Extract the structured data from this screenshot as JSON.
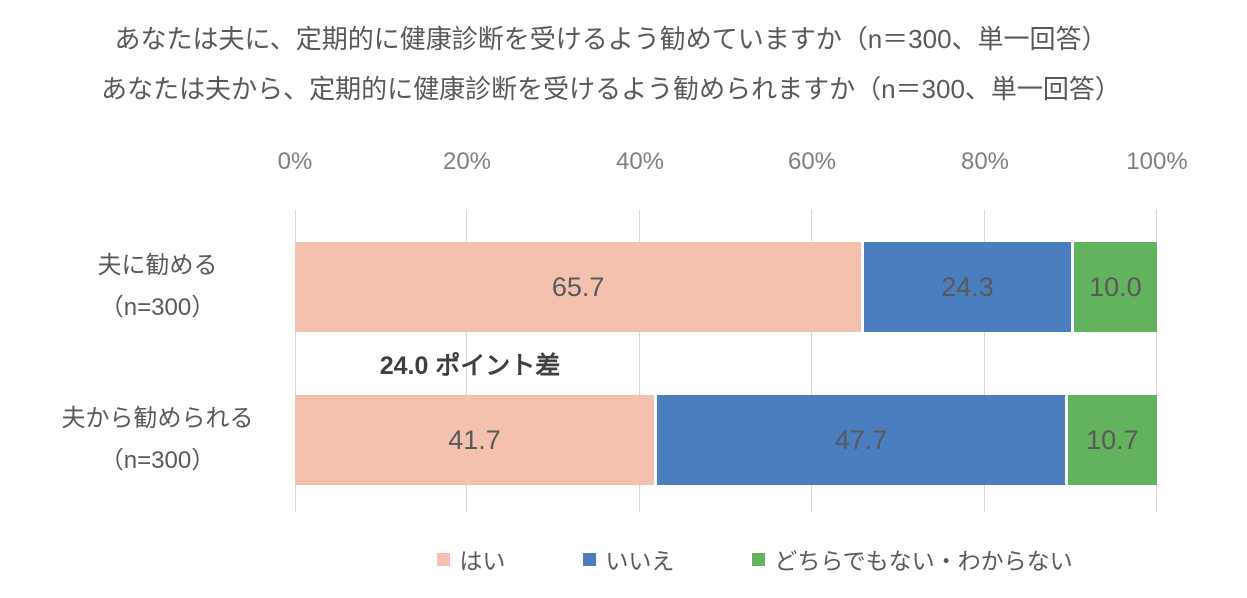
{
  "title": {
    "line1": "あなたは夫に、定期的に健康診断を受けるよう勧めていますか（n＝300、単一回答）",
    "line2": "あなたは夫から、定期的に健康診断を受けるよう勧められますか（n＝300、単一回答）"
  },
  "chart_data": {
    "type": "bar",
    "subtype": "horizontal-stacked",
    "title": "あなたは夫に、定期的に健康診断を受けるよう勧めていますか（n＝300、単一回答）／あなたは夫から、定期的に健康診断を受けるよう勧められますか（n＝300、単一回答）",
    "x_ticks": [
      "0%",
      "20%",
      "40%",
      "60%",
      "80%",
      "100%"
    ],
    "x_range": [
      0,
      100
    ],
    "grid": true,
    "legend_position": "bottom",
    "categories": [
      {
        "line1": "夫に勧める",
        "line2": "（n=300）",
        "full": "夫に勧める（n=300）"
      },
      {
        "line1": "夫から勧められる",
        "line2": "（n=300）",
        "full": "夫から勧められる（n=300）"
      }
    ],
    "series": [
      {
        "name": "はい",
        "color": "#F5C1AF",
        "values": [
          65.7,
          41.7
        ],
        "labels": [
          "65.7",
          "41.7"
        ]
      },
      {
        "name": "いいえ",
        "color": "#4A7EBE",
        "values": [
          24.3,
          47.7
        ],
        "labels": [
          "24.3",
          "47.7"
        ]
      },
      {
        "name": "どちらでもない・わからない",
        "color": "#62B25E",
        "values": [
          10.0,
          10.7
        ],
        "labels": [
          "10.0",
          "10.7"
        ]
      }
    ],
    "annotation": "24.0 ポイント差"
  },
  "colors": {
    "background": "#FFFFFF",
    "title_text": "#595959",
    "axis_text": "#7F7F7F",
    "data_label_text": "#595959",
    "annotation_text": "#404040",
    "gridline": "#D9D9D9",
    "series_yes": "#F5C1AF",
    "series_no": "#4A7EBE",
    "series_neither": "#62B25E"
  }
}
